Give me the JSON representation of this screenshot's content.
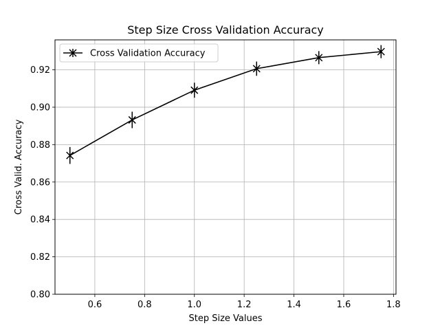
{
  "chart_data": {
    "type": "line",
    "title": "Step Size Cross Validation Accuracy",
    "xlabel": "Step Size Values",
    "ylabel": "Cross Valid. Accuracy",
    "xlim": [
      0.44,
      1.81
    ],
    "ylim": [
      0.8,
      0.936
    ],
    "xticks": [
      0.6,
      0.8,
      1.0,
      1.2,
      1.4,
      1.6,
      1.8
    ],
    "xtick_labels": [
      "0.6",
      "0.8",
      "1.0",
      "1.2",
      "1.4",
      "1.6",
      "1.8"
    ],
    "yticks": [
      0.8,
      0.82,
      0.84,
      0.86,
      0.88,
      0.9,
      0.92
    ],
    "ytick_labels": [
      "0.80",
      "0.82",
      "0.84",
      "0.86",
      "0.88",
      "0.90",
      "0.92"
    ],
    "grid": true,
    "legend_position": "top-left",
    "series": [
      {
        "name": "Cross Validation Accuracy",
        "color": "#000000",
        "marker": "x-cross",
        "x": [
          0.5,
          0.75,
          1.0,
          1.25,
          1.5,
          1.75
        ],
        "y": [
          0.8742,
          0.8932,
          0.9091,
          0.9206,
          0.9265,
          0.9297
        ],
        "yerr": [
          0.0045,
          0.0044,
          0.004,
          0.0038,
          0.0035,
          0.0035
        ]
      }
    ]
  }
}
